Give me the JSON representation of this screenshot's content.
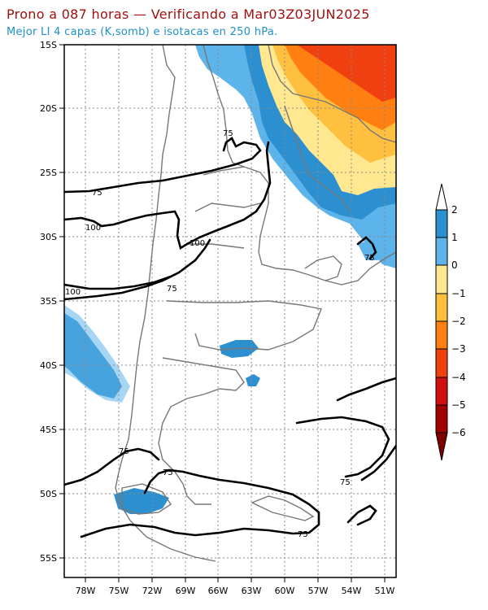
{
  "title": "Prono a 087 horas — Verificando a Mar03Z03JUN2025",
  "subtitle": "Mejor LI 4 capas (K,somb) e isotacas en 250 hPa.",
  "map": {
    "lat_labels": [
      "15S",
      "20S",
      "25S",
      "30S",
      "35S",
      "40S",
      "45S",
      "50S",
      "55S"
    ],
    "lon_labels": [
      "78W",
      "75W",
      "72W",
      "69W",
      "66W",
      "63W",
      "60W",
      "57W",
      "54W",
      "51W"
    ],
    "isotach_labels": [
      "75",
      "75",
      "100",
      "100",
      "100",
      "75",
      "75",
      "75",
      "75",
      "75",
      "75"
    ]
  },
  "colorbar": {
    "labels": [
      "2",
      "1",
      "0",
      "−1",
      "−2",
      "−3",
      "−4",
      "−5",
      "−6"
    ],
    "colors": [
      "#ffffff",
      "#2b8fd0",
      "#5cb4ea",
      "#ffe890",
      "#ffc040",
      "#ff8010",
      "#f04010",
      "#d01010",
      "#a00000",
      "#800000"
    ]
  }
}
